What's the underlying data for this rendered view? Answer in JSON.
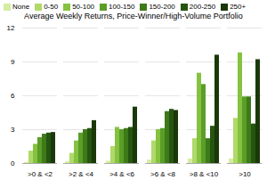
{
  "chart_data": {
    "type": "bar",
    "title": "Average Weekly Returns, Price-Winner/High-Volume Portfolio",
    "categories": [
      ">0 & <2",
      ">2 & <4",
      ">4 & <6",
      ">6 & <8",
      ">8 & <10",
      ">10"
    ],
    "series": [
      {
        "name": "None",
        "color": "#d4eda0",
        "values": [
          0.1,
          0.15,
          0.2,
          0.3,
          0.4,
          0.4
        ]
      },
      {
        "name": "0-50",
        "color": "#b0d96a",
        "values": [
          1.1,
          0.9,
          1.5,
          2.0,
          2.2,
          4.0
        ]
      },
      {
        "name": "50-100",
        "color": "#85c240",
        "values": [
          1.7,
          2.0,
          3.2,
          3.0,
          8.0,
          9.8
        ]
      },
      {
        "name": "100-150",
        "color": "#5a9e28",
        "values": [
          2.3,
          2.7,
          3.0,
          3.1,
          7.0,
          5.9
        ]
      },
      {
        "name": "150-200",
        "color": "#3d7a18",
        "values": [
          2.6,
          3.0,
          3.1,
          4.6,
          2.2,
          5.9
        ]
      },
      {
        "name": "200-250",
        "color": "#255510",
        "values": [
          2.7,
          3.1,
          3.2,
          4.8,
          3.3,
          3.5
        ]
      },
      {
        "name": "250+",
        "color": "#1a3808",
        "values": [
          2.75,
          3.8,
          5.0,
          4.7,
          9.6,
          9.2
        ]
      }
    ],
    "ylim": [
      0,
      12
    ],
    "yticks": [
      0,
      3,
      6,
      9,
      12
    ],
    "grid": true,
    "legend": "upper left"
  }
}
